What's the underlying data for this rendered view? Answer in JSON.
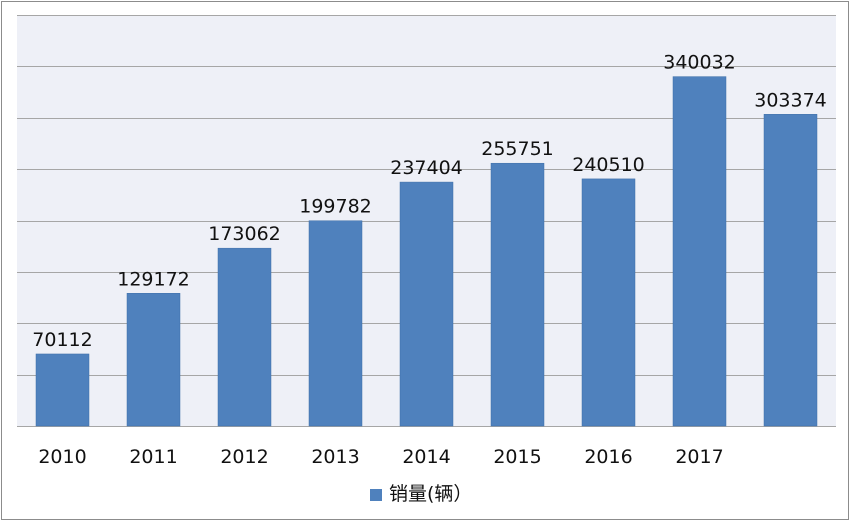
{
  "chart_data": {
    "type": "bar",
    "categories": [
      "2010",
      "2011",
      "2012",
      "2013",
      "2014",
      "2015",
      "2016",
      "2017",
      ""
    ],
    "series": [
      {
        "name": "销量(辆）",
        "values": [
          70112,
          129172,
          173062,
          199782,
          237404,
          255751,
          240510,
          340032,
          303374
        ],
        "color": "#4f81bd"
      }
    ],
    "ylim": [
      0,
      400000
    ],
    "y_gridlines": [
      0,
      50000,
      100000,
      150000,
      200000,
      250000,
      300000,
      350000,
      400000
    ],
    "grid": true,
    "legend_position": "bottom",
    "plot_background": "#eef0f7",
    "gridline_color": "#a6a6a6"
  }
}
